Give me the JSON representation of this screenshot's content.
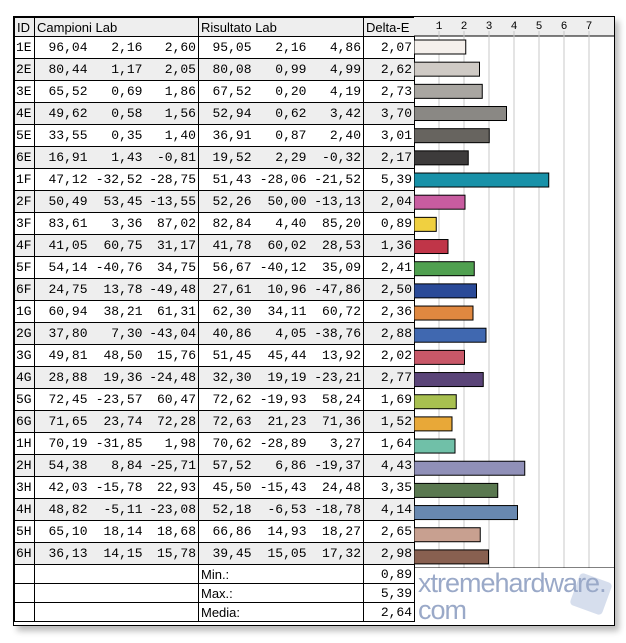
{
  "headers": {
    "id": "ID",
    "campioni": "Campioni Lab",
    "risultato": "Risultato Lab",
    "delta": "Delta-E"
  },
  "rows": [
    [
      "1E",
      "96,04",
      "2,16",
      "2,60",
      "95,05",
      "2,16",
      "4,86",
      "2,07"
    ],
    [
      "2E",
      "80,44",
      "1,17",
      "2,05",
      "80,08",
      "0,99",
      "4,99",
      "2,62"
    ],
    [
      "3E",
      "65,52",
      "0,69",
      "1,86",
      "67,52",
      "0,20",
      "4,19",
      "2,73"
    ],
    [
      "4E",
      "49,62",
      "0,58",
      "1,56",
      "52,94",
      "0,62",
      "3,42",
      "3,70"
    ],
    [
      "5E",
      "33,55",
      "0,35",
      "1,40",
      "36,91",
      "0,87",
      "2,40",
      "3,01"
    ],
    [
      "6E",
      "16,91",
      "1,43",
      "-0,81",
      "19,52",
      "2,29",
      "-0,32",
      "2,17"
    ],
    [
      "1F",
      "47,12",
      "-32,52",
      "-28,75",
      "51,43",
      "-28,06",
      "-21,52",
      "5,39"
    ],
    [
      "2F",
      "50,49",
      "53,45",
      "-13,55",
      "52,26",
      "50,00",
      "-13,13",
      "2,04"
    ],
    [
      "3F",
      "83,61",
      "3,36",
      "87,02",
      "82,84",
      "4,40",
      "85,20",
      "0,89"
    ],
    [
      "4F",
      "41,05",
      "60,75",
      "31,17",
      "41,78",
      "60,02",
      "28,53",
      "1,36"
    ],
    [
      "5F",
      "54,14",
      "-40,76",
      "34,75",
      "56,67",
      "-40,12",
      "35,09",
      "2,41"
    ],
    [
      "6F",
      "24,75",
      "13,78",
      "-49,48",
      "27,61",
      "10,96",
      "-47,86",
      "2,50"
    ],
    [
      "1G",
      "60,94",
      "38,21",
      "61,31",
      "62,30",
      "34,11",
      "60,72",
      "2,36"
    ],
    [
      "2G",
      "37,80",
      "7,30",
      "-43,04",
      "40,86",
      "4,05",
      "-38,76",
      "2,88"
    ],
    [
      "3G",
      "49,81",
      "48,50",
      "15,76",
      "51,45",
      "45,44",
      "13,92",
      "2,02"
    ],
    [
      "4G",
      "28,88",
      "19,36",
      "-24,48",
      "32,30",
      "19,19",
      "-23,21",
      "2,77"
    ],
    [
      "5G",
      "72,45",
      "-23,57",
      "60,47",
      "72,62",
      "-19,93",
      "58,24",
      "1,69"
    ],
    [
      "6G",
      "71,65",
      "23,74",
      "72,28",
      "72,63",
      "21,23",
      "71,36",
      "1,52"
    ],
    [
      "1H",
      "70,19",
      "-31,85",
      "1,98",
      "70,62",
      "-28,89",
      "3,27",
      "1,64"
    ],
    [
      "2H",
      "54,38",
      "8,84",
      "-25,71",
      "57,52",
      "6,86",
      "-19,37",
      "4,43"
    ],
    [
      "3H",
      "42,03",
      "-15,78",
      "22,93",
      "45,50",
      "-15,43",
      "24,48",
      "3,35"
    ],
    [
      "4H",
      "48,82",
      "-5,11",
      "-23,08",
      "52,18",
      "-6,53",
      "-18,78",
      "4,14"
    ],
    [
      "5H",
      "65,10",
      "18,14",
      "18,68",
      "66,86",
      "14,93",
      "18,27",
      "2,65"
    ],
    [
      "6H",
      "36,13",
      "14,15",
      "15,78",
      "39,45",
      "15,05",
      "17,32",
      "2,98"
    ]
  ],
  "stats": [
    {
      "label": "Min.:",
      "value": "0,89"
    },
    {
      "label": "Max.:",
      "value": "5,39"
    },
    {
      "label": "Media:",
      "value": "2,64"
    }
  ],
  "chart_data": {
    "type": "bar",
    "orientation": "horizontal",
    "categories": [
      "1E",
      "2E",
      "3E",
      "4E",
      "5E",
      "6E",
      "1F",
      "2F",
      "3F",
      "4F",
      "5F",
      "6F",
      "1G",
      "2G",
      "3G",
      "4G",
      "5G",
      "6G",
      "1H",
      "2H",
      "3H",
      "4H",
      "5H",
      "6H"
    ],
    "values": [
      2.07,
      2.62,
      2.73,
      3.7,
      3.01,
      2.17,
      5.39,
      2.04,
      0.89,
      1.36,
      2.41,
      2.5,
      2.36,
      2.88,
      2.02,
      2.77,
      1.69,
      1.52,
      1.64,
      4.43,
      3.35,
      4.14,
      2.65,
      2.98
    ],
    "colors": [
      "#f5f0ec",
      "#cfcac5",
      "#a9a6a1",
      "#8a8884",
      "#67645f",
      "#3d3b3b",
      "#1891a8",
      "#c85ca0",
      "#f0d040",
      "#c03548",
      "#50a050",
      "#2a4a98",
      "#e08840",
      "#4068b0",
      "#c85868",
      "#5a4478",
      "#a8c050",
      "#e8a838",
      "#70c0a8",
      "#9090b8",
      "#5a7850",
      "#6888b0",
      "#c8a090",
      "#886050"
    ],
    "tick_labels": [
      "1",
      "2",
      "3",
      "4",
      "5",
      "6",
      "7"
    ],
    "xlim": [
      0,
      7.9
    ],
    "grid": true
  },
  "watermark": "xtremehardware.com"
}
